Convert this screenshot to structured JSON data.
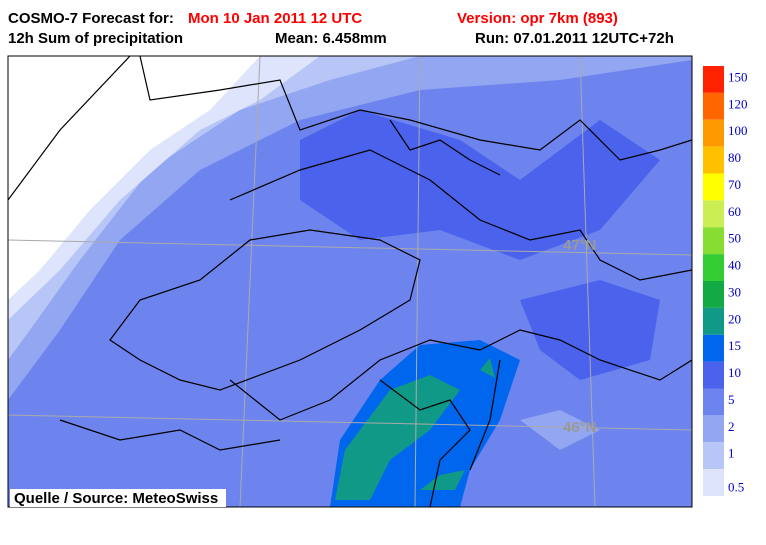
{
  "header": {
    "forecast_label": "COSMO-7 Forecast for:",
    "forecast_time": "Mon 10 Jan 2011 12 UTC",
    "version": "Version: opr 7km (893)",
    "product": "12h Sum of precipitation",
    "mean": "Mean: 6.458mm",
    "run": "Run: 07.01.2011 12UTC+72h"
  },
  "map": {
    "lat_labels": [
      "47°N",
      "46°N"
    ],
    "source": "Quelle / Source: MeteoSwiss"
  },
  "legend": {
    "levels": [
      {
        "label": "150",
        "color": "#ff2200"
      },
      {
        "label": "120",
        "color": "#ff6600"
      },
      {
        "label": "100",
        "color": "#ff9900"
      },
      {
        "label": "80",
        "color": "#ffc000"
      },
      {
        "label": "70",
        "color": "#ffff00"
      },
      {
        "label": "60",
        "color": "#ccee55"
      },
      {
        "label": "50",
        "color": "#88dd33"
      },
      {
        "label": "40",
        "color": "#33cc33"
      },
      {
        "label": "30",
        "color": "#11aa44"
      },
      {
        "label": "20",
        "color": "#119988"
      },
      {
        "label": "15",
        "color": "#0066ee"
      },
      {
        "label": "10",
        "color": "#4a62ec"
      },
      {
        "label": "5",
        "color": "#6d84ee"
      },
      {
        "label": "2",
        "color": "#92a6f2"
      },
      {
        "label": "1",
        "color": "#b7c6f6"
      },
      {
        "label": "0.5",
        "color": "#dde4fb"
      }
    ]
  }
}
